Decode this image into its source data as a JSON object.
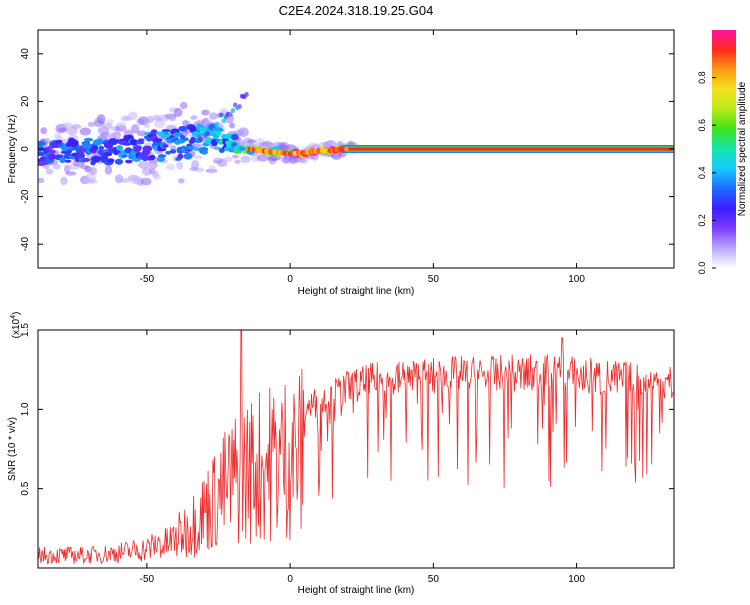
{
  "title": "C2E4.2024.318.19.25.G04",
  "colors": {
    "frame": "#000000",
    "snr_line": "#ee2a2a",
    "colormap": [
      "#ffffff",
      "#b9a7ff",
      "#7c3cff",
      "#3a1cff",
      "#1f6bff",
      "#17c9ff",
      "#13e6b0",
      "#3ee21a",
      "#b9ea1a",
      "#f2e21c",
      "#ff9a14",
      "#ff2a1a",
      "#ff14a0"
    ]
  },
  "chart_data": [
    {
      "type": "heatmap",
      "name_key": "spectrogram",
      "xlabel": "Height of straight line (km)",
      "ylabel": "Frequency (Hz)",
      "xlim": [
        -88,
        134
      ],
      "ylim": [
        -50,
        50
      ],
      "xticks": [
        -50,
        0,
        50,
        100
      ],
      "yticks": [
        -40,
        -20,
        0,
        20,
        40
      ],
      "grid": false,
      "colorbar": {
        "label": "Normalized spectral amplitude",
        "range": [
          0,
          1
        ],
        "ticks": [
          0.0,
          0.2,
          0.4,
          0.6,
          0.8
        ]
      },
      "ridge": {
        "description_points_km": [
          -88,
          -60,
          -40,
          -25,
          -15,
          0,
          10,
          20,
          134
        ],
        "center_freq_hz": [
          -2,
          0,
          2,
          5,
          0,
          -2,
          -1,
          0,
          0
        ],
        "spread_hz": [
          8,
          10,
          12,
          10,
          3,
          2,
          2,
          1.5,
          1.5
        ],
        "amplitude": [
          0.3,
          0.32,
          0.35,
          0.4,
          0.6,
          0.85,
          0.9,
          0.95,
          0.95
        ]
      }
    },
    {
      "type": "line",
      "name_key": "snr",
      "xlabel": "Height of straight line (km)",
      "ylabel": "SNR (10 * v/v)",
      "scale_label": "(x10",
      "scale_exp": "4",
      "scale_close": ")",
      "xlim": [
        -88,
        134
      ],
      "ylim": [
        0,
        1.5
      ],
      "xticks": [
        -50,
        0,
        50,
        100
      ],
      "yticks": [
        0.5,
        1.0,
        1.5
      ],
      "grid": false,
      "envelope_x": [
        -88,
        -70,
        -60,
        -50,
        -45,
        -40,
        -35,
        -30,
        -25,
        -20,
        -15,
        -10,
        -5,
        0,
        5,
        10,
        15,
        20,
        30,
        40,
        50,
        60,
        70,
        80,
        90,
        100,
        110,
        120,
        134
      ],
      "envelope_y": [
        0.1,
        0.1,
        0.12,
        0.15,
        0.2,
        0.28,
        0.4,
        0.55,
        0.7,
        0.85,
        0.95,
        1.0,
        1.05,
        1.1,
        1.12,
        1.15,
        1.2,
        1.25,
        1.3,
        1.32,
        1.33,
        1.34,
        1.34,
        1.35,
        1.35,
        1.34,
        1.32,
        1.3,
        1.28
      ]
    }
  ]
}
